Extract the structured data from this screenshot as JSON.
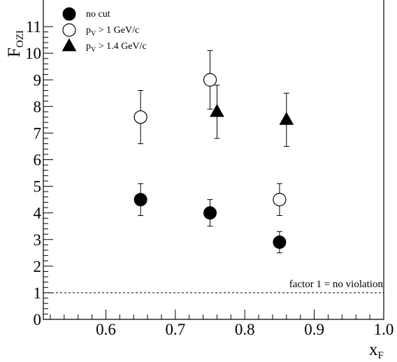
{
  "chart_data": {
    "type": "scatter",
    "xlabel": {
      "main": "x",
      "sub": "F"
    },
    "ylabel": {
      "main": "F",
      "sub": "OZI"
    },
    "xlim": [
      0.51,
      1.0
    ],
    "ylim": [
      0,
      12
    ],
    "x_ticks": [
      0.6,
      0.7,
      0.8,
      0.9,
      1.0
    ],
    "x_tick_labels": [
      "0.6",
      "0.7",
      "0.8",
      "0.9",
      "1.0"
    ],
    "y_ticks": [
      0,
      1,
      2,
      3,
      4,
      5,
      6,
      7,
      8,
      9,
      10,
      11
    ],
    "y_tick_labels": [
      "0",
      "1",
      "2",
      "3",
      "4",
      "5",
      "6",
      "7",
      "8",
      "9",
      "10",
      "11"
    ],
    "grid": false,
    "legend_position": "top-left",
    "series": [
      {
        "legend": {
          "pre": "no cut",
          "sub": "",
          "post": ""
        },
        "marker": "filled-circle",
        "points": [
          {
            "x": 0.65,
            "y": 4.5,
            "err": 0.6
          },
          {
            "x": 0.75,
            "y": 4.0,
            "err": 0.5
          },
          {
            "x": 0.85,
            "y": 2.9,
            "err": 0.4
          }
        ]
      },
      {
        "legend": {
          "pre": "p",
          "sub": "V",
          "post": " > 1 GeV/c"
        },
        "marker": "open-circle",
        "points": [
          {
            "x": 0.65,
            "y": 7.6,
            "err": 1.0
          },
          {
            "x": 0.75,
            "y": 9.0,
            "err": 1.1
          },
          {
            "x": 0.85,
            "y": 4.5,
            "err": 0.6
          }
        ]
      },
      {
        "legend": {
          "pre": "p",
          "sub": "V",
          "post": " > 1.4 GeV/c"
        },
        "marker": "filled-triangle",
        "points": [
          {
            "x": 0.76,
            "y": 7.8,
            "err": 1.0
          },
          {
            "x": 0.86,
            "y": 7.5,
            "err": 1.0
          }
        ]
      }
    ],
    "reference_line": {
      "y": 1,
      "style": "dashed",
      "label": "factor 1 = no violation"
    }
  }
}
